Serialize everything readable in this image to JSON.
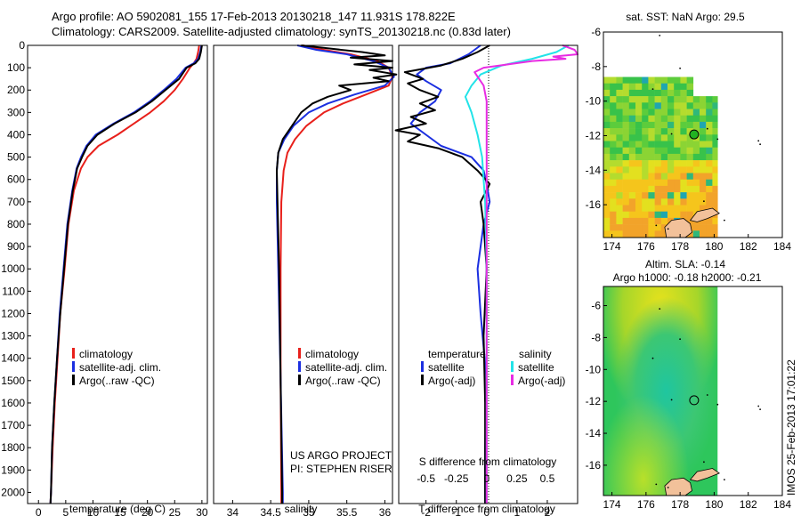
{
  "header": {
    "line1": "Argo profile: AO 5902081_155 17-Feb-2013 20130218_147 11.931S 178.822E",
    "line2": "Climatology: CARS2009. Satellite-adjusted climatology: synTS_20130218.nc (0.83d later)"
  },
  "credit": "IMOS 25-Feb-2013 17:01:22",
  "colors": {
    "climatology": "#e8201b",
    "satellite": "#1b2fe0",
    "argo": "#000000",
    "salinity_satellite": "#22e3e8",
    "salinity_argo": "#e82be3"
  },
  "depth_ticks": [
    "0",
    "100",
    "200",
    "300",
    "400",
    "500",
    "600",
    "700",
    "800",
    "900",
    "1000",
    "1100",
    "1200",
    "1300",
    "1400",
    "1500",
    "1600",
    "1700",
    "1800",
    "1900",
    "2000"
  ],
  "chart_data": [
    {
      "type": "line",
      "id": "temperature",
      "xlabel": "temperature (deg C)",
      "xlim": [
        -2,
        31
      ],
      "ylim": [
        2050,
        0
      ],
      "xticks": [
        "0",
        "5",
        "10",
        "15",
        "20",
        "25",
        "30"
      ],
      "legend": [
        "climatology",
        "satellite-adj. clim.",
        "Argo(..raw -QC)"
      ],
      "series": [
        {
          "name": "climatology",
          "color": "#e8201b",
          "points": [
            [
              29.5,
              0
            ],
            [
              29.3,
              30
            ],
            [
              29.0,
              60
            ],
            [
              28.5,
              80
            ],
            [
              27.8,
              100
            ],
            [
              26.5,
              150
            ],
            [
              25.0,
              200
            ],
            [
              23.0,
              250
            ],
            [
              20.5,
              300
            ],
            [
              17.5,
              350
            ],
            [
              14.5,
              400
            ],
            [
              11.0,
              450
            ],
            [
              9.0,
              500
            ],
            [
              7.8,
              550
            ],
            [
              6.5,
              650
            ],
            [
              5.5,
              800
            ],
            [
              4.8,
              1000
            ],
            [
              4.0,
              1200
            ],
            [
              3.5,
              1400
            ],
            [
              3.0,
              1600
            ],
            [
              2.6,
              1800
            ],
            [
              2.3,
              2000
            ],
            [
              2.2,
              2050
            ]
          ]
        },
        {
          "name": "satellite-adj. clim.",
          "color": "#1b2fe0",
          "points": [
            [
              29.9,
              0
            ],
            [
              29.7,
              30
            ],
            [
              29.3,
              60
            ],
            [
              28.5,
              80
            ],
            [
              27.0,
              100
            ],
            [
              25.3,
              150
            ],
            [
              23.0,
              200
            ],
            [
              20.5,
              250
            ],
            [
              17.5,
              300
            ],
            [
              13.8,
              350
            ],
            [
              10.5,
              400
            ],
            [
              8.8,
              450
            ],
            [
              7.8,
              500
            ],
            [
              7.0,
              550
            ],
            [
              6.2,
              650
            ],
            [
              5.3,
              800
            ],
            [
              4.6,
              1000
            ],
            [
              3.9,
              1200
            ],
            [
              3.4,
              1400
            ],
            [
              2.9,
              1600
            ],
            [
              2.5,
              1800
            ],
            [
              2.3,
              2000
            ],
            [
              2.2,
              2050
            ]
          ]
        },
        {
          "name": "Argo(..raw -QC)",
          "color": "#000000",
          "points": [
            [
              30.0,
              0
            ],
            [
              29.8,
              30
            ],
            [
              29.5,
              60
            ],
            [
              28.8,
              80
            ],
            [
              27.2,
              100
            ],
            [
              25.8,
              150
            ],
            [
              23.3,
              200
            ],
            [
              20.8,
              250
            ],
            [
              17.8,
              300
            ],
            [
              14.0,
              350
            ],
            [
              10.8,
              400
            ],
            [
              9.0,
              450
            ],
            [
              8.0,
              500
            ],
            [
              7.1,
              550
            ],
            [
              6.3,
              650
            ],
            [
              5.4,
              800
            ],
            [
              4.7,
              1000
            ],
            [
              4.0,
              1200
            ],
            [
              3.4,
              1400
            ],
            [
              2.9,
              1600
            ],
            [
              2.5,
              1800
            ],
            [
              2.3,
              2000
            ],
            [
              2.2,
              2050
            ]
          ]
        }
      ]
    },
    {
      "type": "line",
      "id": "salinity",
      "xlabel": "salinity",
      "xlim": [
        33.75,
        36.1
      ],
      "ylim": [
        2050,
        0
      ],
      "xticks": [
        "34",
        "34.5",
        "35",
        "35.5",
        "36"
      ],
      "legend": [
        "climatology",
        "satellite-adj. clim.",
        "Argo(..raw -QC)"
      ],
      "annotation": [
        "US ARGO PROJECT",
        "PI: STEPHEN RISER"
      ],
      "series": [
        {
          "name": "climatology",
          "color": "#e8201b",
          "points": [
            [
              34.92,
              0
            ],
            [
              35.2,
              20
            ],
            [
              35.55,
              40
            ],
            [
              35.9,
              70
            ],
            [
              36.05,
              100
            ],
            [
              36.1,
              140
            ],
            [
              36.05,
              180
            ],
            [
              35.75,
              220
            ],
            [
              35.45,
              260
            ],
            [
              35.2,
              300
            ],
            [
              34.97,
              360
            ],
            [
              34.82,
              420
            ],
            [
              34.72,
              480
            ],
            [
              34.67,
              560
            ],
            [
              34.64,
              700
            ],
            [
              34.63,
              1000
            ],
            [
              34.63,
              1500
            ],
            [
              34.64,
              2000
            ],
            [
              34.64,
              2050
            ]
          ]
        },
        {
          "name": "satellite-adj. clim.",
          "color": "#1b2fe0",
          "points": [
            [
              34.85,
              0
            ],
            [
              35.1,
              20
            ],
            [
              35.5,
              40
            ],
            [
              35.85,
              70
            ],
            [
              36.05,
              100
            ],
            [
              36.12,
              140
            ],
            [
              36.0,
              180
            ],
            [
              35.6,
              220
            ],
            [
              35.25,
              260
            ],
            [
              35.0,
              300
            ],
            [
              34.8,
              360
            ],
            [
              34.68,
              420
            ],
            [
              34.6,
              480
            ],
            [
              34.58,
              560
            ],
            [
              34.58,
              700
            ],
            [
              34.6,
              1000
            ],
            [
              34.63,
              1500
            ],
            [
              34.66,
              2000
            ],
            [
              34.66,
              2050
            ]
          ]
        },
        {
          "name": "Argo(..raw -QC)",
          "color": "#000000",
          "points": [
            [
              34.9,
              0
            ],
            [
              35.3,
              15
            ],
            [
              35.7,
              30
            ],
            [
              36.0,
              45
            ],
            [
              35.55,
              55
            ],
            [
              36.1,
              70
            ],
            [
              35.6,
              85
            ],
            [
              36.1,
              100
            ],
            [
              35.8,
              110
            ],
            [
              36.15,
              130
            ],
            [
              35.85,
              145
            ],
            [
              36.05,
              160
            ],
            [
              35.4,
              180
            ],
            [
              35.55,
              200
            ],
            [
              35.25,
              230
            ],
            [
              35.05,
              260
            ],
            [
              34.9,
              300
            ],
            [
              34.78,
              360
            ],
            [
              34.66,
              420
            ],
            [
              34.6,
              480
            ],
            [
              34.58,
              560
            ],
            [
              34.59,
              700
            ],
            [
              34.61,
              1000
            ],
            [
              34.63,
              1500
            ],
            [
              34.65,
              2000
            ],
            [
              34.65,
              2050
            ]
          ]
        }
      ]
    },
    {
      "type": "line",
      "id": "difference",
      "xlabel": "T difference from climatology",
      "xlabel_top": "S difference from climatology",
      "xlim": [
        -2.9,
        3.0
      ],
      "ylim": [
        2050,
        0
      ],
      "xticks": [
        "-2",
        "-1",
        "0",
        "1",
        "2"
      ],
      "xticks_top": [
        "-0.5",
        "-0.25",
        "0",
        "0.25",
        "0.5"
      ],
      "legend_left_title": "temperature",
      "legend_right_title": "salinity",
      "legend": [
        "satellite",
        "Argo(-adj)",
        "satellite",
        "Argo(-adj)"
      ],
      "series": [
        {
          "name": "satellite",
          "color": "#1b2fe0",
          "points": [
            [
              -0.2,
              0
            ],
            [
              -0.6,
              40
            ],
            [
              -1.2,
              80
            ],
            [
              -2.0,
              100
            ],
            [
              -2.3,
              130
            ],
            [
              -2.0,
              160
            ],
            [
              -1.5,
              200
            ],
            [
              -1.7,
              250
            ],
            [
              -2.2,
              300
            ],
            [
              -2.5,
              350
            ],
            [
              -2.0,
              400
            ],
            [
              -1.5,
              450
            ],
            [
              -0.5,
              500
            ],
            [
              -0.1,
              560
            ],
            [
              0.0,
              620
            ],
            [
              0.1,
              700
            ],
            [
              -0.1,
              800
            ],
            [
              -0.3,
              1000
            ],
            [
              -0.2,
              1200
            ],
            [
              0.0,
              1500
            ],
            [
              -0.05,
              1800
            ],
            [
              -0.05,
              2000
            ],
            [
              -0.05,
              2050
            ]
          ]
        },
        {
          "name": "Argo(-adj)",
          "color": "#000000",
          "points": [
            [
              0.1,
              0
            ],
            [
              -0.3,
              30
            ],
            [
              -0.8,
              60
            ],
            [
              -1.5,
              90
            ],
            [
              -2.7,
              120
            ],
            [
              -2.1,
              150
            ],
            [
              -2.6,
              170
            ],
            [
              -2.2,
              200
            ],
            [
              -1.6,
              230
            ],
            [
              -2.2,
              260
            ],
            [
              -1.7,
              290
            ],
            [
              -2.5,
              320
            ],
            [
              -2.0,
              350
            ],
            [
              -3.0,
              380
            ],
            [
              -2.2,
              400
            ],
            [
              -2.6,
              430
            ],
            [
              -1.6,
              460
            ],
            [
              -0.8,
              500
            ],
            [
              -0.3,
              560
            ],
            [
              0.1,
              620
            ],
            [
              -0.2,
              700
            ],
            [
              -0.1,
              800
            ],
            [
              0.0,
              1000
            ],
            [
              -0.1,
              1300
            ],
            [
              -0.05,
              1600
            ],
            [
              -0.05,
              2000
            ],
            [
              -0.05,
              2050
            ]
          ]
        },
        {
          "name": "satellite",
          "color": "#22e3e8",
          "points": [
            [
              2.7,
              0
            ],
            [
              2.3,
              30
            ],
            [
              1.5,
              60
            ],
            [
              0.5,
              90
            ],
            [
              -0.2,
              130
            ],
            [
              -0.5,
              180
            ],
            [
              -0.7,
              230
            ],
            [
              -0.5,
              300
            ],
            [
              -0.3,
              400
            ],
            [
              -0.15,
              500
            ],
            [
              -0.05,
              700
            ],
            [
              0.0,
              1000
            ],
            [
              0.0,
              1500
            ],
            [
              0.0,
              2000
            ],
            [
              0.0,
              2050
            ]
          ]
        },
        {
          "name": "Argo(-adj)",
          "color": "#e82be3",
          "points": [
            [
              2.5,
              0
            ],
            [
              2.9,
              20
            ],
            [
              3.0,
              40
            ],
            [
              2.2,
              50
            ],
            [
              2.6,
              60
            ],
            [
              1.5,
              70
            ],
            [
              -0.1,
              100
            ],
            [
              -0.4,
              120
            ],
            [
              -0.3,
              140
            ],
            [
              -0.1,
              180
            ],
            [
              0.0,
              250
            ],
            [
              0.0,
              400
            ],
            [
              0.0,
              800
            ],
            [
              0.0,
              1400
            ],
            [
              0.0,
              2000
            ],
            [
              0.0,
              2050
            ]
          ]
        }
      ]
    },
    {
      "type": "heatmap",
      "id": "sst_map",
      "title": "sat. SST: NaN Argo: 29.5",
      "xlim": [
        173.5,
        184
      ],
      "ylim": [
        -17.9,
        -6
      ],
      "xticks": [
        "174",
        "176",
        "178",
        "180",
        "182",
        "184"
      ],
      "yticks": [
        "-16",
        "-14",
        "-12",
        "-10",
        "-8",
        "-6"
      ],
      "data_extent": [
        [
          173.5,
          180.2
        ],
        [
          -17.9,
          -8.6
        ]
      ],
      "argo_marker": [
        178.822,
        -11.931
      ]
    },
    {
      "type": "heatmap",
      "id": "sla_map",
      "title": "Altim. SLA: -0.14",
      "subtitle": "Argo h1000: -0.18 h2000: -0.21",
      "xlim": [
        173.5,
        184
      ],
      "ylim": [
        -17.9,
        -4.8
      ],
      "xticks": [
        "174",
        "176",
        "178",
        "180",
        "182",
        "184"
      ],
      "yticks": [
        "-16",
        "-14",
        "-12",
        "-10",
        "-8",
        "-6"
      ],
      "data_extent": [
        [
          173.5,
          180.2
        ],
        [
          -17.9,
          -4.8
        ]
      ],
      "argo_marker": [
        178.822,
        -11.931
      ]
    }
  ]
}
